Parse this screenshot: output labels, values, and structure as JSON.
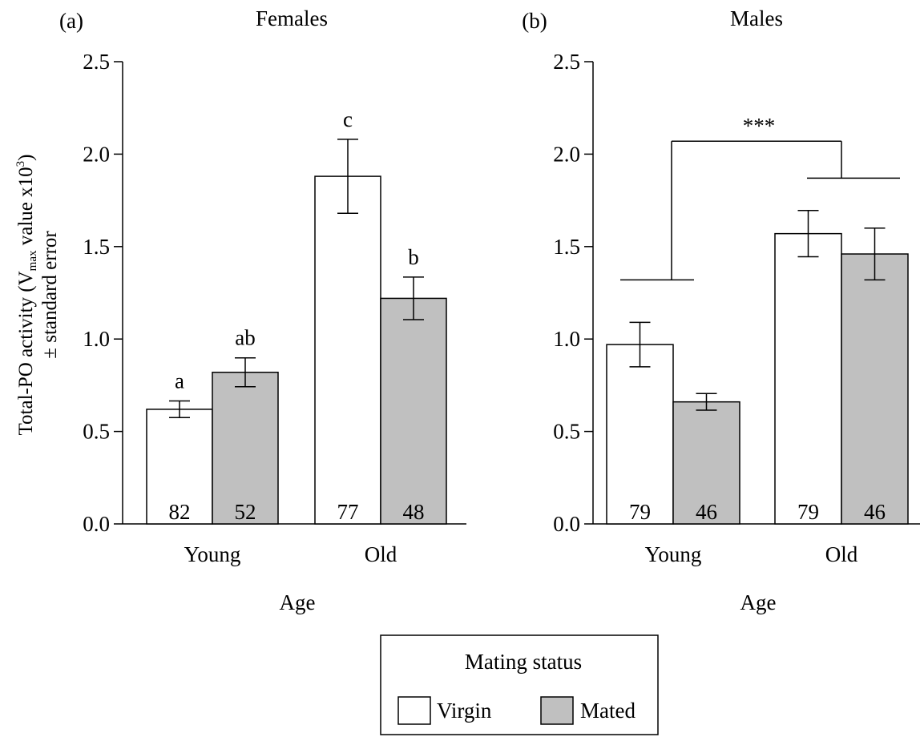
{
  "y_axis_label": {
    "line1_prefix": "Total-PO activity (V",
    "line1_sub": "max",
    "line1_mid": " value x10",
    "line1_sup": "3",
    "line1_end": ")",
    "line2": "± standard error"
  },
  "legend": {
    "title": "Mating status",
    "items": [
      {
        "label": "Virgin",
        "color": "#ffffff"
      },
      {
        "label": "Mated",
        "color": "#c0c0c0"
      }
    ]
  },
  "colors": {
    "virgin": "#ffffff",
    "mated": "#c0c0c0",
    "axis": "#000000"
  },
  "chart_data": [
    {
      "type": "bar",
      "panel_label": "(a)",
      "title": "Females",
      "xlabel": "Age",
      "categories": [
        "Young",
        "Old"
      ],
      "ylim": [
        0,
        2.5
      ],
      "yticks": [
        "0.0",
        "0.5",
        "1.0",
        "1.5",
        "2.0",
        "2.5"
      ],
      "series": [
        {
          "key": "virgin",
          "values": [
            0.62,
            1.88
          ],
          "errors": [
            0.045,
            0.2
          ],
          "n": [
            "82",
            "77"
          ]
        },
        {
          "key": "mated",
          "values": [
            0.82,
            1.22
          ],
          "errors": [
            0.078,
            0.115
          ],
          "n": [
            "52",
            "48"
          ]
        }
      ],
      "letters": [
        [
          "a",
          "c"
        ],
        [
          "ab",
          "b"
        ]
      ]
    },
    {
      "type": "bar",
      "panel_label": "(b)",
      "title": "Males",
      "xlabel": "Age",
      "categories": [
        "Young",
        "Old"
      ],
      "ylim": [
        0,
        2.5
      ],
      "yticks": [
        "0.0",
        "0.5",
        "1.0",
        "1.5",
        "2.0",
        "2.5"
      ],
      "series": [
        {
          "key": "virgin",
          "values": [
            0.97,
            1.57
          ],
          "errors": [
            0.12,
            0.125
          ],
          "n": [
            "79",
            "79"
          ]
        },
        {
          "key": "mated",
          "values": [
            0.66,
            1.46
          ],
          "errors": [
            0.045,
            0.14
          ],
          "n": [
            "46",
            "46"
          ]
        }
      ],
      "significance": {
        "label": "***",
        "left_y": 1.32,
        "right_y": 1.87,
        "top_y": 2.07
      }
    }
  ]
}
